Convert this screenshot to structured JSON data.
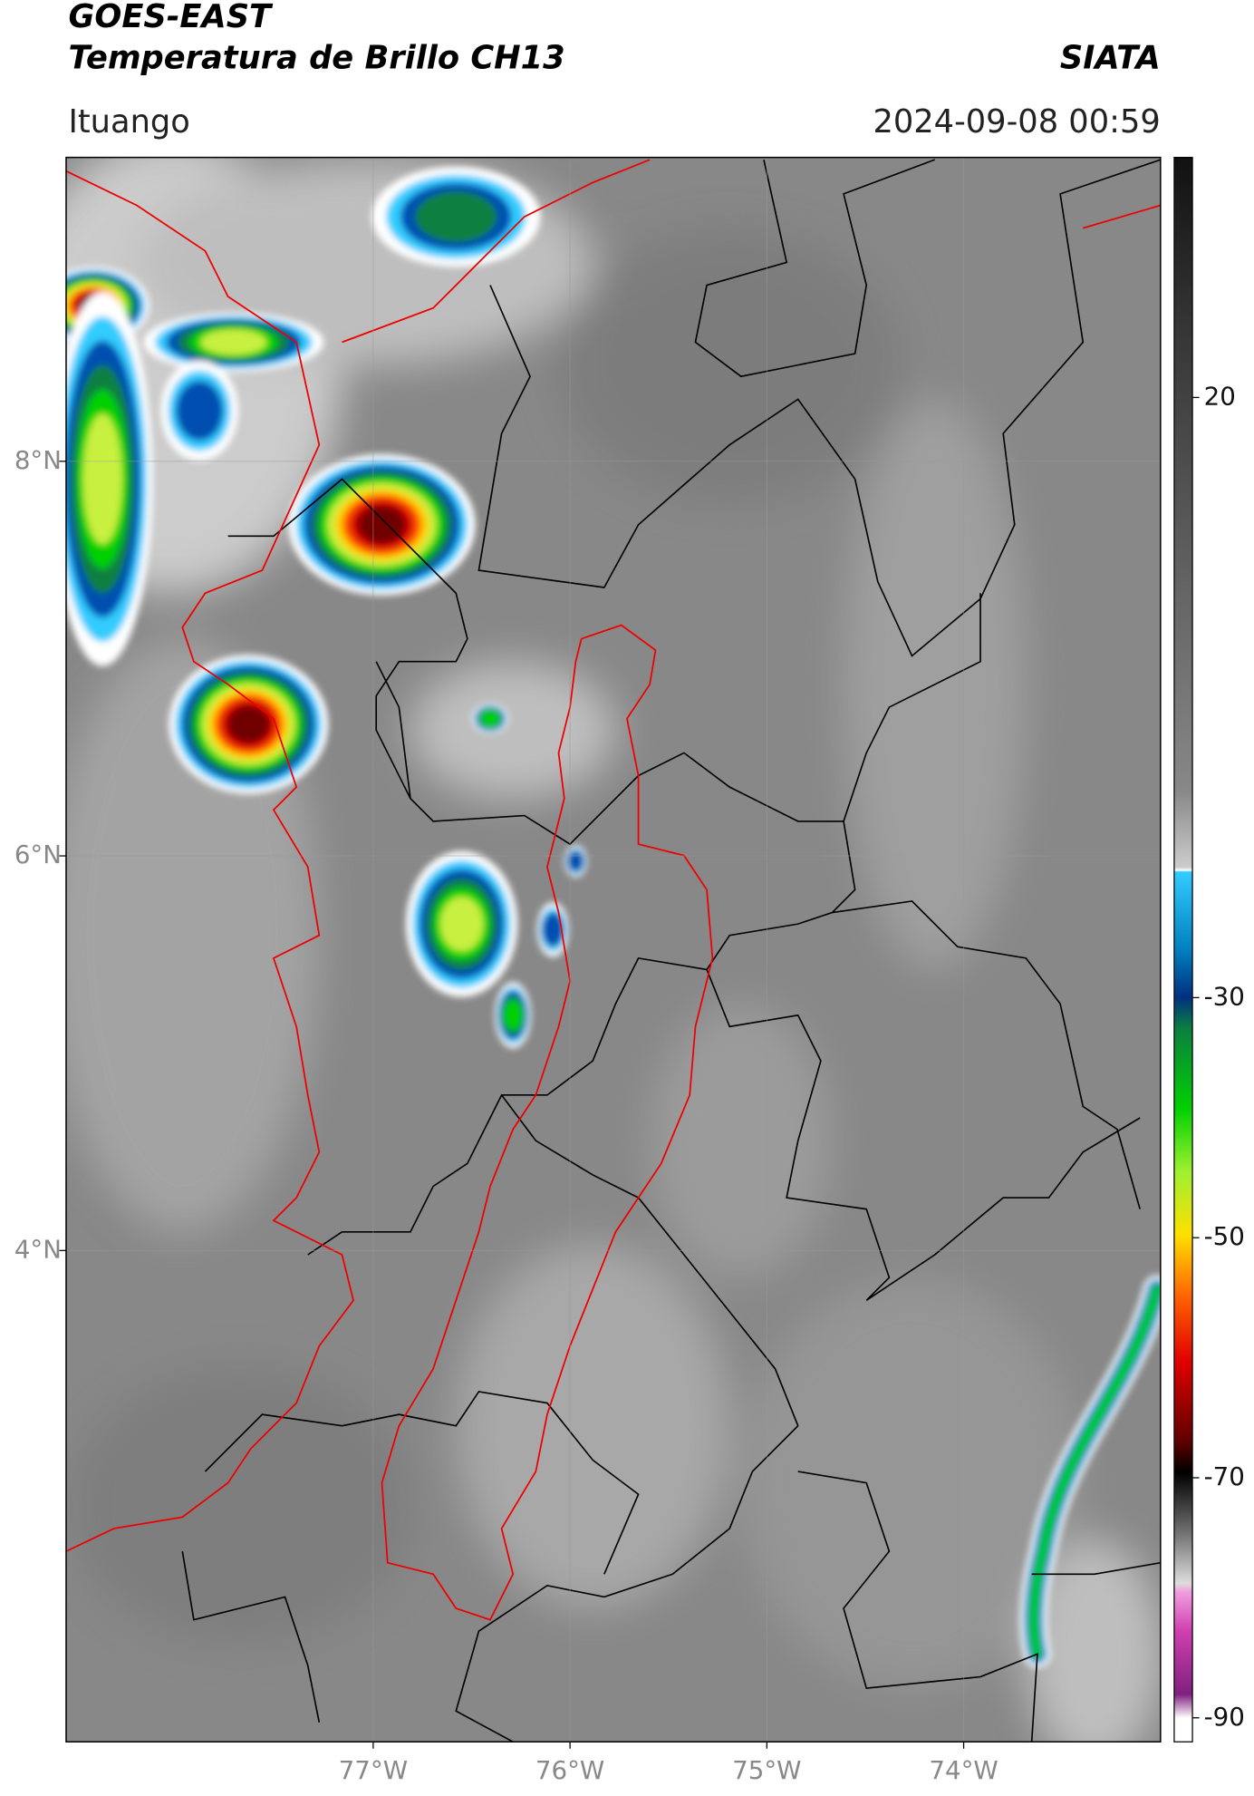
{
  "header": {
    "title": "GOES-EAST",
    "subtitle": "Temperatura de Brillo CH13",
    "agency": "SIATA",
    "location": "Ituango",
    "datetime": "2024-09-08 00:59"
  },
  "map": {
    "xlim": [
      -78.56,
      -73.0
    ],
    "ylim": [
      1.51,
      9.54
    ],
    "xticks": [
      {
        "value": -77,
        "label": "77°W"
      },
      {
        "value": -76,
        "label": "76°W"
      },
      {
        "value": -75,
        "label": "75°W"
      },
      {
        "value": -74,
        "label": "74°W"
      }
    ],
    "yticks": [
      {
        "value": 8,
        "label": "8°N"
      },
      {
        "value": 6,
        "label": "6°N"
      },
      {
        "value": 4,
        "label": "4°N"
      }
    ]
  },
  "colorbar": {
    "lim": [
      -92,
      40
    ],
    "ticks": [
      20,
      -30,
      -50,
      -70,
      -90
    ]
  }
}
